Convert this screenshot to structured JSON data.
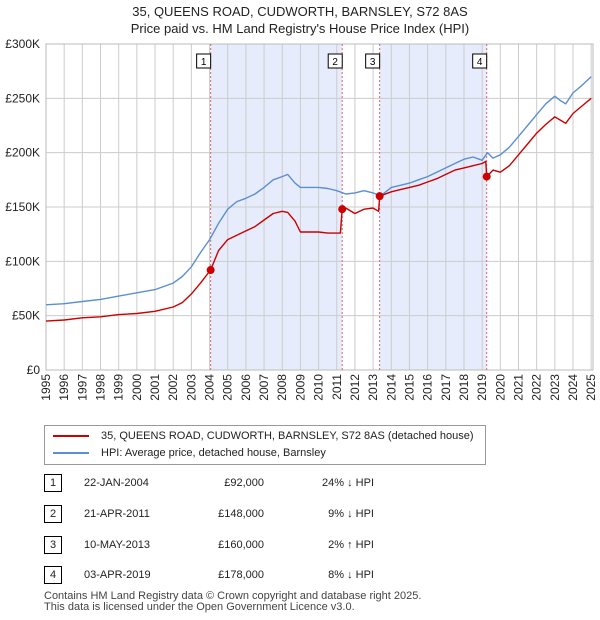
{
  "title_line1": "35, QUEENS ROAD, CUDWORTH, BARNSLEY, S72 8AS",
  "title_line2": "Price paid vs. HM Land Registry's House Price Index (HPI)",
  "legend": {
    "property": "35, QUEENS ROAD, CUDWORTH, BARNSLEY, S72 8AS (detached house)",
    "hpi": "HPI: Average price, detached house, Barnsley"
  },
  "sales": [
    {
      "id": "1",
      "date": "22-JAN-2004",
      "price": "£92,000",
      "hpi": "24% ↓ HPI"
    },
    {
      "id": "2",
      "date": "21-APR-2011",
      "price": "£148,000",
      "hpi": "9% ↓ HPI"
    },
    {
      "id": "3",
      "date": "10-MAY-2013",
      "price": "£160,000",
      "hpi": "2% ↑ HPI"
    },
    {
      "id": "4",
      "date": "03-APR-2019",
      "price": "£178,000",
      "hpi": "8% ↓ HPI"
    }
  ],
  "footer_line1": "Contains HM Land Registry data © Crown copyright and database right 2025.",
  "footer_line2": "This data is licensed under the Open Government Licence v3.0.",
  "colors": {
    "property": "#cc0000",
    "hpi": "#5b8fd1",
    "shade": "#e6ecfb",
    "grid": "#cccccc",
    "marker_line": "#dd6666"
  },
  "chart_data": {
    "type": "line",
    "title": "35, QUEENS ROAD, CUDWORTH, BARNSLEY, S72 8AS — Price paid vs. HM Land Registry's House Price Index (HPI)",
    "xlabel": "",
    "ylabel": "",
    "xlim": [
      1995,
      2025.1
    ],
    "ylim": [
      0,
      300000
    ],
    "x_ticks": [
      "1995",
      "1996",
      "1997",
      "1998",
      "1999",
      "2000",
      "2001",
      "2002",
      "2003",
      "2004",
      "2005",
      "2006",
      "2007",
      "2008",
      "2009",
      "2010",
      "2011",
      "2012",
      "2013",
      "2014",
      "2015",
      "2016",
      "2017",
      "2018",
      "2019",
      "2020",
      "2021",
      "2022",
      "2023",
      "2024",
      "2025"
    ],
    "y_ticks": [
      {
        "value": 0,
        "label": "£0"
      },
      {
        "value": 50000,
        "label": "£50K"
      },
      {
        "value": 100000,
        "label": "£100K"
      },
      {
        "value": 150000,
        "label": "£150K"
      },
      {
        "value": 200000,
        "label": "£200K"
      },
      {
        "value": 250000,
        "label": "£250K"
      },
      {
        "value": 300000,
        "label": "£300K"
      }
    ],
    "grid": true,
    "shaded_ranges": [
      [
        2004.06,
        2011.3
      ],
      [
        2013.36,
        2019.25
      ]
    ],
    "sales": [
      {
        "label": "1",
        "x": 2004.06,
        "y": 92000
      },
      {
        "label": "2",
        "x": 2011.3,
        "y": 148000
      },
      {
        "label": "3",
        "x": 2013.36,
        "y": 160000
      },
      {
        "label": "4",
        "x": 2019.25,
        "y": 178000
      }
    ],
    "series": [
      {
        "name": "HPI: Average price, detached house, Barnsley",
        "x": [
          1995,
          1996,
          1997,
          1998,
          1999,
          2000,
          2001,
          2002,
          2002.5,
          2003,
          2003.5,
          2004,
          2004.5,
          2005,
          2005.5,
          2006,
          2006.5,
          2007,
          2007.5,
          2008,
          2008.3,
          2008.7,
          2009,
          2009.5,
          2010,
          2010.5,
          2011,
          2011.5,
          2012,
          2012.5,
          2013,
          2013.4,
          2014,
          2014.5,
          2015,
          2015.5,
          2016,
          2016.5,
          2017,
          2017.5,
          2018,
          2018.5,
          2019,
          2019.3,
          2019.6,
          2020,
          2020.5,
          2021,
          2021.5,
          2022,
          2022.5,
          2023,
          2023.3,
          2023.6,
          2024,
          2024.5,
          2025
        ],
        "values": [
          60000,
          61000,
          63000,
          65000,
          68000,
          71000,
          74000,
          80000,
          86000,
          95000,
          108000,
          120000,
          135000,
          148000,
          155000,
          158000,
          162000,
          168000,
          175000,
          178000,
          180000,
          172000,
          168000,
          168000,
          168000,
          167000,
          165000,
          162000,
          163000,
          165000,
          163000,
          160000,
          168000,
          170000,
          172000,
          175000,
          178000,
          182000,
          186000,
          190000,
          194000,
          196000,
          193000,
          200000,
          195000,
          198000,
          205000,
          215000,
          225000,
          235000,
          245000,
          252000,
          248000,
          245000,
          255000,
          262000,
          270000
        ]
      },
      {
        "name": "35, QUEENS ROAD, CUDWORTH, BARNSLEY, S72 8AS (detached house)",
        "x": [
          1995,
          1996,
          1997,
          1998,
          1999,
          2000,
          2001,
          2002,
          2002.5,
          2003,
          2003.5,
          2004.06,
          2004.5,
          2005,
          2005.5,
          2006,
          2006.5,
          2007,
          2007.5,
          2008,
          2008.3,
          2008.7,
          2009,
          2009.5,
          2010,
          2010.5,
          2011.2,
          2011.3,
          2011.5,
          2012,
          2012.5,
          2013,
          2013.3,
          2013.36,
          2014,
          2014.5,
          2015,
          2015.5,
          2016,
          2016.5,
          2017,
          2017.5,
          2018,
          2018.5,
          2019,
          2019.2,
          2019.25,
          2019.6,
          2020,
          2020.5,
          2021,
          2021.5,
          2022,
          2022.5,
          2023,
          2023.3,
          2023.6,
          2024,
          2024.5,
          2025
        ],
        "values": [
          45000,
          46000,
          48000,
          49000,
          51000,
          52000,
          54000,
          58000,
          62000,
          70000,
          80000,
          92000,
          110000,
          120000,
          124000,
          128000,
          132000,
          138000,
          144000,
          146000,
          145000,
          137000,
          127000,
          127000,
          127000,
          126000,
          126000,
          148000,
          149000,
          144000,
          148000,
          149000,
          146000,
          160000,
          164000,
          166000,
          168000,
          170000,
          173000,
          176000,
          180000,
          184000,
          186000,
          188000,
          190000,
          192000,
          178000,
          184000,
          182000,
          188000,
          198000,
          208000,
          218000,
          226000,
          233000,
          230000,
          227000,
          236000,
          243000,
          250000
        ]
      }
    ]
  }
}
